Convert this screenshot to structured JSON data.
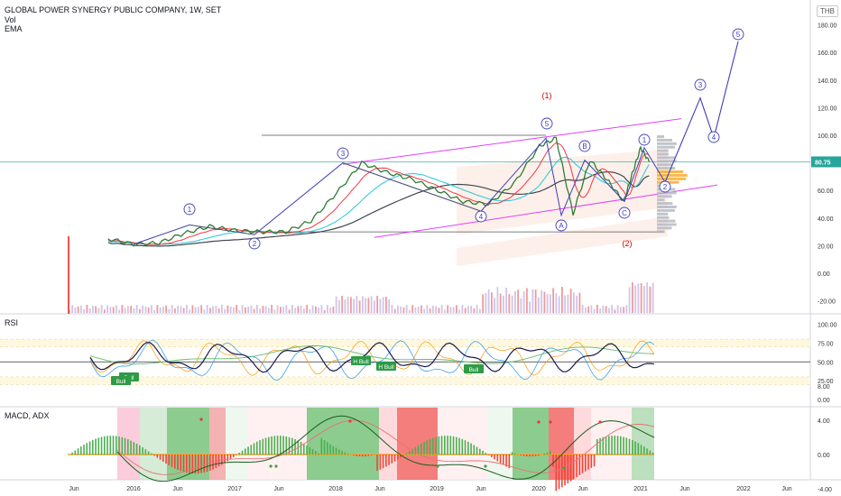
{
  "header": {
    "title": "GLOBAL POWER SYNERGY PUBLIC COMPANY, 1W, SET",
    "vol_label": "Vol",
    "ema_label": "EMA",
    "currency": "THB"
  },
  "price_pane": {
    "last_price": "80.75",
    "last_price_color": "#26a69a",
    "y_ticks": [
      "180.00",
      "160.00",
      "140.00",
      "120.00",
      "100.00",
      "80.00",
      "60.00",
      "40.00",
      "20.00",
      "0.00",
      "-20.00"
    ],
    "wave_labels": [
      "1",
      "2",
      "3",
      "4",
      "5",
      "A",
      "B",
      "C",
      "1",
      "2",
      "3",
      "4",
      "5"
    ],
    "scenario_labels": [
      "(1)",
      "(2)"
    ]
  },
  "rsi_pane": {
    "label": "RSI",
    "y_ticks": [
      "100.00",
      "75.00",
      "50.00",
      "25.00",
      "0.00"
    ],
    "signal_labels": [
      "Bull",
      "H Bull",
      "H Bull",
      "Bull",
      "Bull"
    ]
  },
  "macd_pane": {
    "label": "MACD, ADX",
    "y_ticks": [
      "8.00",
      "4.00",
      "0.00",
      "-4.00"
    ]
  },
  "x_axis": {
    "labels": [
      "Jun",
      "2016",
      "Jun",
      "2017",
      "Jun",
      "2018",
      "Jun",
      "2019",
      "Jun",
      "2020",
      "Jun",
      "2021",
      "Jun",
      "2022",
      "Jun"
    ]
  },
  "colors": {
    "price_line": "#131722",
    "ema_fast": "#f23645",
    "ema_mid": "#26c6da",
    "ema_slow": "#434651",
    "wave": "#3f3fb8",
    "channel": "#e040fb",
    "rsi": "#1a1a4e",
    "bull_box": "#2e9b46",
    "macd_green": "#4caf50",
    "macd_red": "#f44336"
  },
  "chart_data": {
    "type": "line",
    "title": "GLOBAL POWER SYNERGY PUBLIC COMPANY, 1W, SET",
    "xlabel": "",
    "ylabel": "",
    "ylim": [
      -30,
      190
    ],
    "x": [
      "2015-10",
      "2016-01",
      "2016-04",
      "2016-07",
      "2016-10",
      "2017-01",
      "2017-04",
      "2017-07",
      "2017-10",
      "2018-01",
      "2018-04",
      "2018-07",
      "2018-10",
      "2019-01",
      "2019-04",
      "2019-07",
      "2019-10",
      "2020-01",
      "2020-03",
      "2020-05",
      "2020-07",
      "2020-09",
      "2020-11",
      "2020-12",
      "2021-01",
      "2021-02"
    ],
    "series": [
      {
        "values": [
          25,
          21,
          22,
          29,
          34,
          31,
          30,
          30,
          38,
          58,
          80,
          73,
          68,
          60,
          52,
          50,
          65,
          92,
          98,
          43,
          82,
          68,
          52,
          72,
          91,
          80.75
        ]
      }
    ],
    "projection": {
      "x": [
        "2021-02",
        "2021-07",
        "2021-10",
        "2022-01"
      ],
      "values": [
        65,
        130,
        97,
        168
      ]
    }
  }
}
